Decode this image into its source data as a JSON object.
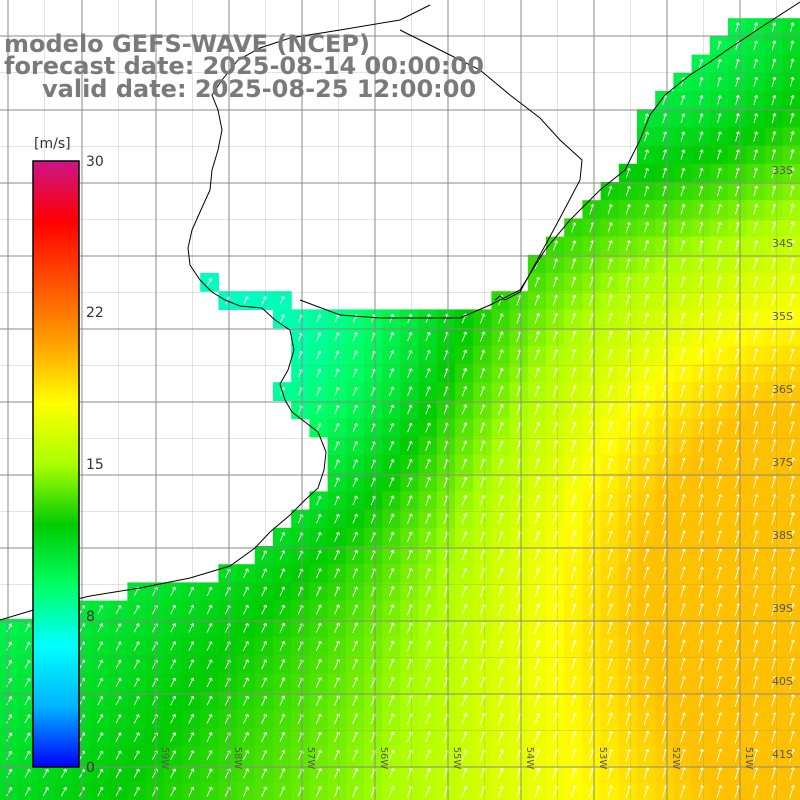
{
  "title": {
    "line1": "modelo GEFS-WAVE (NCEP)",
    "line2": "forecast date: 2025-08-14 00:00:00",
    "line3": "valid date: 2025-08-25 12:00:00"
  },
  "colorbar": {
    "unit": "[m/s]",
    "ticks": [
      "30",
      "22",
      "15",
      "8",
      "0"
    ],
    "min": 0,
    "max": 30,
    "colors": [
      "#0000ff",
      "#00b4ff",
      "#00ffff",
      "#00ff64",
      "#00cc00",
      "#aaff00",
      "#ffff00",
      "#ffa000",
      "#ff5000",
      "#ff0000",
      "#cc1488"
    ]
  },
  "map": {
    "lat_labels": [
      "33S",
      "34S",
      "35S",
      "36S",
      "37S",
      "38S",
      "39S",
      "40S",
      "41S"
    ],
    "lon_labels": [
      "59W",
      "58W",
      "57W",
      "56W",
      "55W",
      "54W",
      "53W",
      "52W",
      "51W"
    ],
    "land_color": "#ffffff",
    "grid_color": "#888888",
    "coast_color": "#000000",
    "arrow_color": "#ffffff"
  }
}
